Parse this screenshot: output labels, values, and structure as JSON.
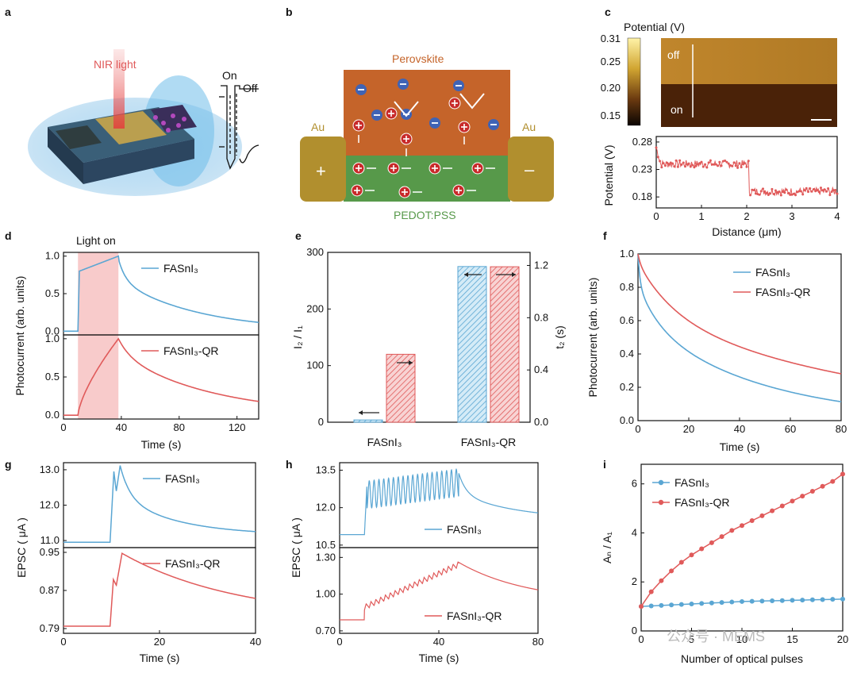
{
  "panel_labels": {
    "a": "a",
    "b": "b",
    "c": "c",
    "d": "d",
    "e": "e",
    "f": "f",
    "g": "g",
    "h": "h",
    "i": "i"
  },
  "colors": {
    "blue": "#5aa6d3",
    "red": "#e05a5a",
    "gold": "#b18f2e",
    "perovskite": "#c5642a",
    "pedot": "#57994a"
  },
  "panel_a": {
    "nir_label": "NIR light",
    "on": "On",
    "off": "Off"
  },
  "panel_b": {
    "perovskite": "Perovskite",
    "pedot": "PEDOT:PSS",
    "au_left": "Au",
    "au_right": "Au",
    "plus": "+",
    "minus": "–"
  },
  "panel_c": {
    "colorbar_title": "Potential (V)",
    "colorbar_ticks": [
      "0.31",
      "0.25",
      "0.20",
      "0.15"
    ],
    "map_off": "off",
    "map_on": "on"
  },
  "chart_data": [
    {
      "id": "c-profile",
      "type": "scatter",
      "ylabel": "Potential (V)",
      "xlabel": "Distance (μm)",
      "xlim": [
        0,
        4
      ],
      "ylim": [
        0.16,
        0.29
      ],
      "xticks": [
        "0",
        "1",
        "2",
        "3",
        "4"
      ],
      "yticks": [
        "0.28",
        "0.23",
        "0.18"
      ],
      "description_levels": {
        "off": 0.24,
        "on": 0.19,
        "step_at": 2.05
      }
    },
    {
      "id": "d",
      "type": "line",
      "ylabel": "Photocurrent (arb. units)",
      "xlabel": "Time (s)",
      "annotation": "Light on",
      "light_on": [
        10,
        38
      ],
      "xlim": [
        0,
        135
      ],
      "xticks": [
        "0",
        "40",
        "80",
        "120"
      ],
      "top": {
        "name": "FASnI₃",
        "yticks": [
          "1.0",
          "0.5",
          "0.0"
        ]
      },
      "bottom": {
        "name": "FASnI₃-QR",
        "yticks": [
          "1.0",
          "0.5",
          "0.0"
        ]
      }
    },
    {
      "id": "e",
      "type": "bar",
      "ylabel_left": "I₂ / I₁",
      "ylabel_right": "t₂ (s)",
      "categories": [
        "FASnI₃",
        "FASnI₃-QR"
      ],
      "ylim_left": [
        0,
        300
      ],
      "ylim_right": [
        0,
        1.3
      ],
      "yticks_left": [
        "0",
        "100",
        "200",
        "300"
      ],
      "yticks_right": [
        "0.0",
        "0.4",
        "0.8",
        "1.2"
      ],
      "series": [
        {
          "name": "I₂/I₁",
          "values": [
            4,
            275
          ]
        },
        {
          "name": "t₂",
          "values": [
            0.52,
            1.19
          ]
        }
      ]
    },
    {
      "id": "f",
      "type": "line",
      "ylabel": "Photocurrent (arb. units)",
      "xlabel": "Time (s)",
      "xlim": [
        0,
        80
      ],
      "ylim": [
        0,
        1
      ],
      "xticks": [
        "0",
        "20",
        "40",
        "60",
        "80"
      ],
      "yticks": [
        "1.0",
        "0.8",
        "0.6",
        "0.4",
        "0.2",
        "0.0"
      ],
      "series": [
        {
          "name": "FASnI₃",
          "end": 0.06
        },
        {
          "name": "FASnI₃-QR",
          "end": 0.24
        }
      ]
    },
    {
      "id": "g",
      "type": "line",
      "ylabel": "EPSC ( μA )",
      "xlabel": "Time (s)",
      "xlim": [
        0,
        40
      ],
      "xticks": [
        "0",
        "20",
        "40"
      ],
      "top": {
        "name": "FASnI₃",
        "yticks": [
          "13.0",
          "12.0",
          "11.0"
        ],
        "ylim": [
          10.8,
          13.2
        ]
      },
      "bottom": {
        "name": "FASnI₃-QR",
        "yticks": [
          "0.95",
          "0.87",
          "0.79"
        ],
        "ylim": [
          0.78,
          0.96
        ]
      }
    },
    {
      "id": "h",
      "type": "line",
      "ylabel": "EPSC ( μA )",
      "xlabel": "Time (s)",
      "xlim": [
        0,
        80
      ],
      "xticks": [
        "0",
        "40",
        "80"
      ],
      "top": {
        "name": "FASnI₃",
        "yticks": [
          "13.5",
          "12.0",
          "10.5"
        ],
        "ylim": [
          10.4,
          13.8
        ]
      },
      "bottom": {
        "name": "FASnI₃-QR",
        "yticks": [
          "1.30",
          "1.00",
          "0.70"
        ],
        "ylim": [
          0.68,
          1.38
        ]
      }
    },
    {
      "id": "i",
      "type": "scatter",
      "ylabel": "Aₙ / A₁",
      "xlabel": "Number of optical pulses",
      "xlim": [
        0,
        20
      ],
      "ylim": [
        0,
        6.8
      ],
      "xticks": [
        "0",
        "5",
        "10",
        "15",
        "20"
      ],
      "yticks": [
        "0",
        "2",
        "4",
        "6"
      ],
      "series": [
        {
          "name": "FASnI₃",
          "values": [
            1.0,
            1.02,
            1.04,
            1.06,
            1.08,
            1.1,
            1.12,
            1.14,
            1.16,
            1.18,
            1.2,
            1.21,
            1.22,
            1.23,
            1.24,
            1.25,
            1.26,
            1.27,
            1.28,
            1.29,
            1.3
          ]
        },
        {
          "name": "FASnI₃-QR",
          "values": [
            1.0,
            1.6,
            2.05,
            2.45,
            2.8,
            3.1,
            3.35,
            3.6,
            3.85,
            4.1,
            4.3,
            4.5,
            4.7,
            4.9,
            5.1,
            5.3,
            5.5,
            5.7,
            5.9,
            6.1,
            6.4
          ]
        }
      ]
    }
  ],
  "watermark": "公众号 · MEMS"
}
